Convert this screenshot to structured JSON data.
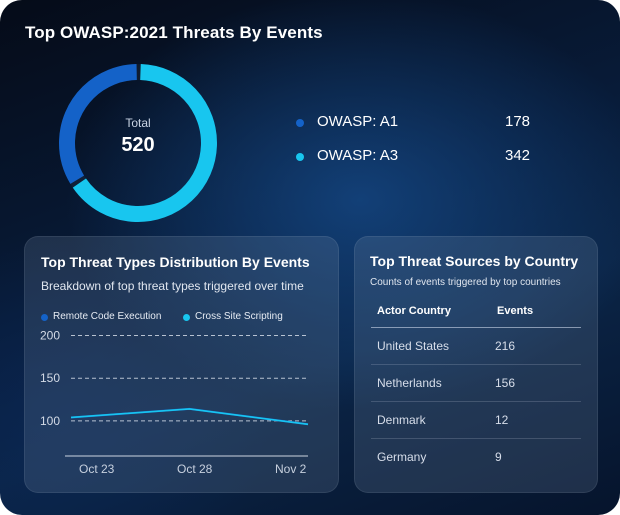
{
  "header": {
    "title": "Top OWASP:2021 Threats By Events"
  },
  "donut": {
    "total_label": "Total",
    "total_value": "520",
    "segments": [
      {
        "name": "OWASP: A1",
        "value": 178,
        "display": "178",
        "color": "#1462c8"
      },
      {
        "name": "OWASP: A3",
        "value": 342,
        "display": "342",
        "color": "#18c6ef"
      }
    ]
  },
  "distribution_card": {
    "title": "Top Threat Types Distribution By Events",
    "subtitle": "Breakdown of top threat types triggered over time",
    "legend": [
      {
        "label": "Remote Code Execution",
        "color": "#1462c8"
      },
      {
        "label": "Cross Site Scripting",
        "color": "#18c6ef"
      }
    ]
  },
  "chart_data": {
    "type": "line",
    "title": "Top Threat Types Distribution By Events",
    "x": [
      "Oct 23",
      "Oct 28",
      "Nov 2"
    ],
    "x_ticks": [
      "Oct 23",
      "Oct 28",
      "Nov 2"
    ],
    "y_ticks": [
      "200",
      "150",
      "100"
    ],
    "ylim": [
      60,
      210
    ],
    "grid": true,
    "series": [
      {
        "name": "Remote Code Execution",
        "color": "#1462c8",
        "values": [
          104,
          114,
          96
        ]
      },
      {
        "name": "Cross Site Scripting",
        "color": "#18c6ef",
        "values": [
          104,
          114,
          96
        ]
      }
    ]
  },
  "sources_card": {
    "title": "Top Threat Sources by Country",
    "subtitle": "Counts of events triggered by top countries",
    "columns": [
      "Actor Country",
      "Events"
    ],
    "rows": [
      {
        "country": "United States",
        "events": "216"
      },
      {
        "country": "Netherlands",
        "events": "156"
      },
      {
        "country": "Denmark",
        "events": "12"
      },
      {
        "country": "Germany",
        "events": "9"
      }
    ]
  }
}
